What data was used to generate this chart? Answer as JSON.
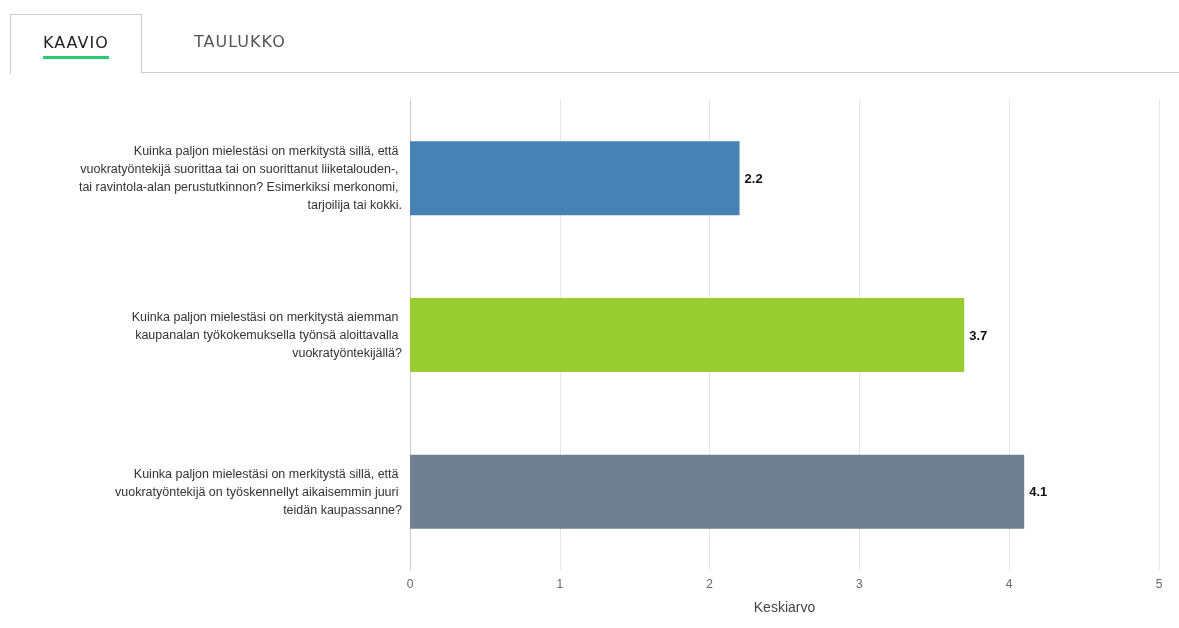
{
  "chart_data": {
    "type": "bar",
    "orientation": "horizontal",
    "categories": [
      "Kuinka paljon mielestäsi on merkitystä sillä, että vuokratyöntekijä suorittaa tai on suorittanut liiketalouden-, tai ravintola-alan perustutkinnon? Esimerkiksi merkonomi, tarjoilija tai kokki.",
      "Kuinka paljon mielestäsi on merkitystä aiemman kaupanalan työkokemuksella työnsä aloittavalla vuokratyöntekijällä?",
      "Kuinka paljon mielestäsi on merkitystä sillä, että vuokratyöntekijä on työskennellyt aikaisemmin juuri teidän kaupassanne?"
    ],
    "values": [
      2.2,
      3.7,
      4.1
    ],
    "colors": [
      "#4682b4",
      "#9acd32",
      "#708090"
    ],
    "xlabel": "Keskiarvo",
    "xlim": [
      0,
      5
    ],
    "xticks": [
      0,
      1,
      2,
      3,
      4,
      5
    ],
    "grid": "x",
    "data_labels": true,
    "annotations": [
      "KAAVIO",
      "TAULUKKO"
    ]
  }
}
